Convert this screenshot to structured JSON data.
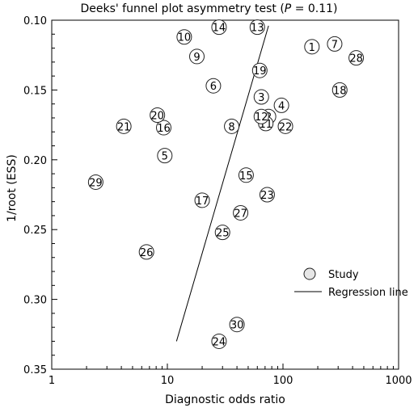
{
  "chart_data": {
    "type": "scatter",
    "title": {
      "prefix": "Deeks' funnel plot asymmetry test (",
      "p_symbol": "P",
      "suffix": " = 0.11)"
    },
    "xlabel": "Diagnostic odds ratio",
    "ylabel": "1/root (ESS)",
    "x_scale": "log",
    "xlim": [
      1,
      1000
    ],
    "ylim": [
      0.1,
      0.35
    ],
    "y_reversed": true,
    "x_ticks": [
      1,
      10,
      100,
      1000
    ],
    "x_tick_labels": [
      "1",
      "10",
      "100",
      "1000"
    ],
    "y_ticks": [
      0.1,
      0.15,
      0.2,
      0.25,
      0.3,
      0.35
    ],
    "y_tick_labels": [
      "0.10",
      "0.15",
      "0.20",
      "0.25",
      "0.30",
      "0.35"
    ],
    "legend": {
      "placement": "right",
      "study_label": "Study",
      "regression_label": "Regression line"
    },
    "regression_line": [
      {
        "x": 12,
        "y": 0.33
      },
      {
        "x": 75,
        "y": 0.104
      }
    ],
    "studies": [
      {
        "label": "1",
        "x": 178,
        "y": 0.119
      },
      {
        "label": "2",
        "x": 75,
        "y": 0.169
      },
      {
        "label": "3",
        "x": 65,
        "y": 0.155
      },
      {
        "label": "4",
        "x": 97,
        "y": 0.161
      },
      {
        "label": "5",
        "x": 9.5,
        "y": 0.197
      },
      {
        "label": "6",
        "x": 25,
        "y": 0.147
      },
      {
        "label": "7",
        "x": 280,
        "y": 0.117
      },
      {
        "label": "8",
        "x": 36,
        "y": 0.176
      },
      {
        "label": "9",
        "x": 18,
        "y": 0.126
      },
      {
        "label": "10",
        "x": 14,
        "y": 0.112
      },
      {
        "label": "11",
        "x": 71,
        "y": 0.174
      },
      {
        "label": "12",
        "x": 65,
        "y": 0.169
      },
      {
        "label": "13",
        "x": 60,
        "y": 0.105
      },
      {
        "label": "14",
        "x": 28,
        "y": 0.105
      },
      {
        "label": "15",
        "x": 48,
        "y": 0.211
      },
      {
        "label": "16",
        "x": 9.3,
        "y": 0.177
      },
      {
        "label": "17",
        "x": 20,
        "y": 0.229
      },
      {
        "label": "18",
        "x": 310,
        "y": 0.15
      },
      {
        "label": "19",
        "x": 63,
        "y": 0.136
      },
      {
        "label": "20",
        "x": 8.2,
        "y": 0.168
      },
      {
        "label": "21",
        "x": 4.2,
        "y": 0.176
      },
      {
        "label": "22",
        "x": 105,
        "y": 0.176
      },
      {
        "label": "23",
        "x": 73,
        "y": 0.225
      },
      {
        "label": "24",
        "x": 28,
        "y": 0.33
      },
      {
        "label": "25",
        "x": 30,
        "y": 0.252
      },
      {
        "label": "26",
        "x": 6.6,
        "y": 0.266
      },
      {
        "label": "27",
        "x": 43,
        "y": 0.238
      },
      {
        "label": "28",
        "x": 430,
        "y": 0.127
      },
      {
        "label": "29",
        "x": 2.4,
        "y": 0.216
      },
      {
        "label": "30",
        "x": 40,
        "y": 0.318
      }
    ]
  }
}
